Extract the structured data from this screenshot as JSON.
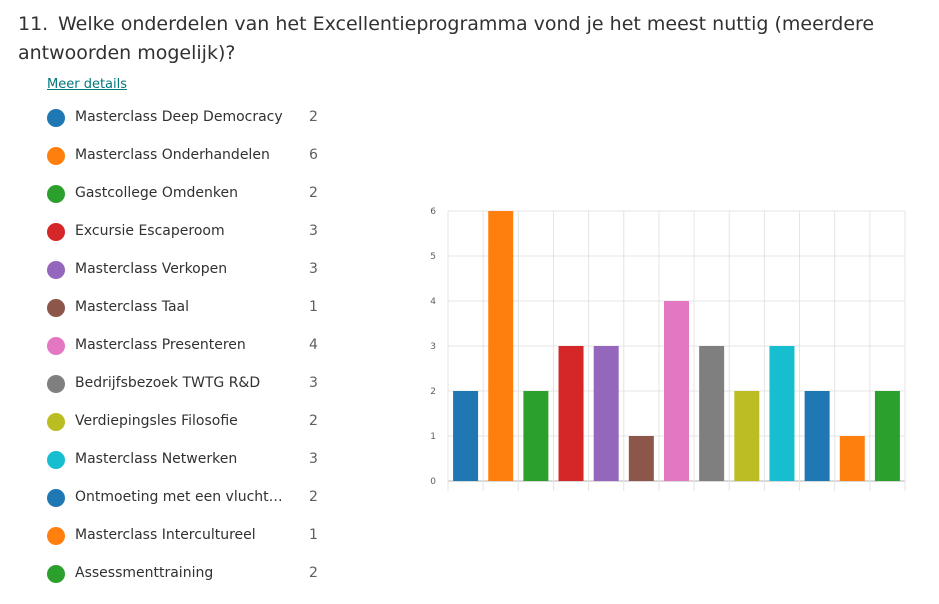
{
  "question": {
    "number": "11.",
    "text": "Welke onderdelen van het Excellentieprogramma vond je het meest nuttig (meerdere antwoorden mogelijk)?"
  },
  "more_details_label": "Meer details",
  "legend_items": [
    {
      "label": "Masterclass Deep Democracy",
      "count": "2",
      "color": "#1f77b4"
    },
    {
      "label": "Masterclass Onderhandelen",
      "count": "6",
      "color": "#ff7f0e"
    },
    {
      "label": "Gastcollege Omdenken",
      "count": "2",
      "color": "#2ca02c"
    },
    {
      "label": "Excursie Escaperoom",
      "count": "3",
      "color": "#d62728"
    },
    {
      "label": "Masterclass Verkopen",
      "count": "3",
      "color": "#9467bd"
    },
    {
      "label": "Masterclass Taal",
      "count": "1",
      "color": "#8c564b"
    },
    {
      "label": "Masterclass Presenteren",
      "count": "4",
      "color": "#e377c2"
    },
    {
      "label": "Bedrijfsbezoek TWTG R&D",
      "count": "3",
      "color": "#7f7f7f"
    },
    {
      "label": "Verdiepingsles Filosofie",
      "count": "2",
      "color": "#bcbd22"
    },
    {
      "label": "Masterclass Netwerken",
      "count": "3",
      "color": "#17becf"
    },
    {
      "label": "Ontmoeting met een vluchteli...",
      "count": "2",
      "color": "#1f77b4"
    },
    {
      "label": "Masterclass Intercultureel",
      "count": "1",
      "color": "#ff7f0e"
    },
    {
      "label": "Assessmenttraining",
      "count": "2",
      "color": "#2ca02c"
    }
  ],
  "chart_data": {
    "type": "bar",
    "categories": [
      "Masterclass Deep Democracy",
      "Masterclass Onderhandelen",
      "Gastcollege Omdenken",
      "Excursie Escaperoom",
      "Masterclass Verkopen",
      "Masterclass Taal",
      "Masterclass Presenteren",
      "Bedrijfsbezoek TWTG R&D",
      "Verdiepingsles Filosofie",
      "Masterclass Netwerken",
      "Ontmoeting met een vluchteli...",
      "Masterclass Intercultureel",
      "Assessmenttraining"
    ],
    "values": [
      2,
      6,
      2,
      3,
      3,
      1,
      4,
      3,
      2,
      3,
      2,
      1,
      2
    ],
    "colors": [
      "#1f77b4",
      "#ff7f0e",
      "#2ca02c",
      "#d62728",
      "#9467bd",
      "#8c564b",
      "#e377c2",
      "#7f7f7f",
      "#bcbd22",
      "#17becf",
      "#1f77b4",
      "#ff7f0e",
      "#2ca02c"
    ],
    "yticks": [
      "0",
      "1",
      "2",
      "3",
      "4",
      "5",
      "6"
    ],
    "ylim": [
      0,
      6
    ],
    "grid": true,
    "title": "",
    "xlabel": "",
    "ylabel": ""
  }
}
